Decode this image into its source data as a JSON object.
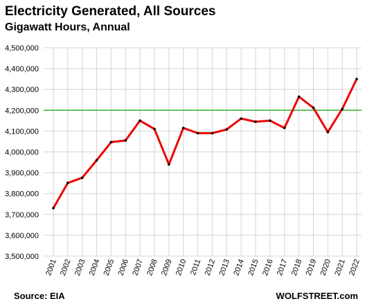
{
  "chart_data": {
    "type": "line",
    "title": "Electricity Generated, All Sources",
    "subtitle": "Gigawatt Hours, Annual",
    "x": [
      "2001",
      "2002",
      "2003",
      "2004",
      "2005",
      "2006",
      "2007",
      "2008",
      "2009",
      "2010",
      "2011",
      "2012",
      "2013",
      "2014",
      "2015",
      "2016",
      "2017",
      "2018",
      "2019",
      "2020",
      "2021",
      "2022"
    ],
    "series": [
      {
        "values": [
          3730000,
          3851000,
          3876000,
          3960000,
          4047000,
          4055000,
          4150000,
          4110000,
          3940000,
          4115000,
          4090000,
          4090000,
          4108000,
          4160000,
          4145000,
          4150000,
          4115000,
          4265000,
          4212000,
          4095000,
          4206000,
          4350000
        ]
      }
    ],
    "yticks": [
      "3,500,000",
      "3,600,000",
      "3,700,000",
      "3,800,000",
      "3,900,000",
      "4,000,000",
      "4,100,000",
      "4,200,000",
      "4,300,000",
      "4,400,000",
      "4,500,000"
    ],
    "ylim": [
      3500000,
      4500000
    ],
    "reference_line": 4200000,
    "grid": true,
    "source": "Source: EIA",
    "brand": "WOLFSTREET.com",
    "colors": {
      "line": "#ee0000",
      "marker": "#000000",
      "reference": "#22aa22",
      "grid": "#d4d4d4"
    }
  }
}
